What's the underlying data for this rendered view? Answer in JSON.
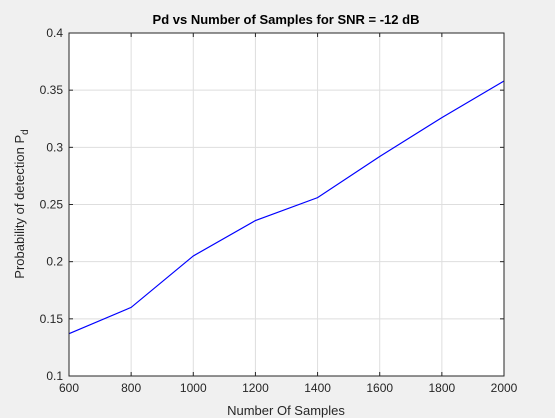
{
  "colors": {
    "figure_background": "#f0f0f0",
    "axes_background": "#ffffff",
    "series_line": "#0000ff",
    "axis": "#262626",
    "grid": "#dedede"
  },
  "chart_data": {
    "type": "line",
    "title": "Pd vs Number of Samples for SNR = -12 dB",
    "xlabel": "Number Of Samples",
    "ylabel_main": "Probability of detection P",
    "ylabel_sub": "d",
    "xlim": [
      600,
      2000
    ],
    "ylim": [
      0.1,
      0.4
    ],
    "xticks": [
      "600",
      "800",
      "1000",
      "1200",
      "1400",
      "1600",
      "1800",
      "2000"
    ],
    "yticks": [
      "0.1",
      "0.15",
      "0.2",
      "0.25",
      "0.3",
      "0.35",
      "0.4"
    ],
    "grid": true,
    "series": [
      {
        "x": [
          600,
          800,
          1000,
          1200,
          1400,
          1600,
          1800,
          2000
        ],
        "y": [
          0.137,
          0.16,
          0.205,
          0.236,
          0.256,
          0.292,
          0.326,
          0.358
        ]
      }
    ]
  }
}
